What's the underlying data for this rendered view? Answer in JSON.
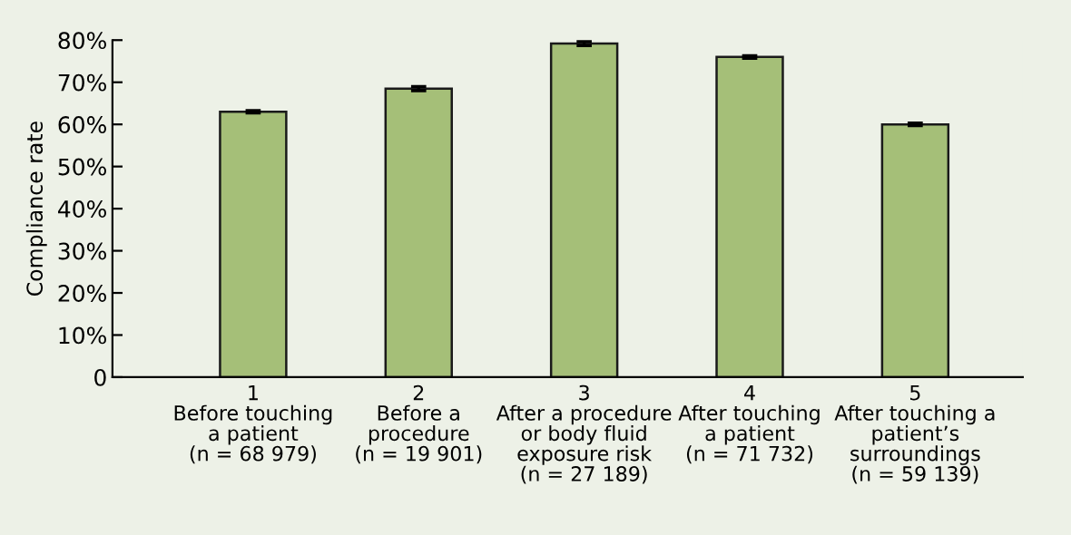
{
  "chart_data": {
    "type": "bar",
    "ylabel": "Compliance rate",
    "categories": [
      "1\nBefore touching\na patient\n(n = 68 979)",
      "2\nBefore a\nprocedure\n(n = 19 901)",
      "3\nAfter a procedure\nor body fluid\nexposure risk\n(n = 27 189)",
      "4\nAfter touching\na patient\n(n = 71 732)",
      "5\nAfter touching a\npatient’s\nsurroundings\n(n = 59 139)"
    ],
    "values": [
      63.0,
      68.5,
      79.2,
      76.0,
      60.0
    ],
    "errors": [
      0.3,
      0.5,
      0.5,
      0.3,
      0.3
    ],
    "color": "#a5bf78",
    "ylim": [
      0,
      80
    ],
    "yticks": [
      {
        "value": 0,
        "label": "0"
      },
      {
        "value": 10,
        "label": "10%"
      },
      {
        "value": 20,
        "label": "20%"
      },
      {
        "value": 30,
        "label": "30%"
      },
      {
        "value": 40,
        "label": "40%"
      },
      {
        "value": 50,
        "label": "50%"
      },
      {
        "value": 60,
        "label": "60%"
      },
      {
        "value": 70,
        "label": "70%"
      },
      {
        "value": 80,
        "label": "80%"
      }
    ],
    "grid": false,
    "legend": false
  }
}
